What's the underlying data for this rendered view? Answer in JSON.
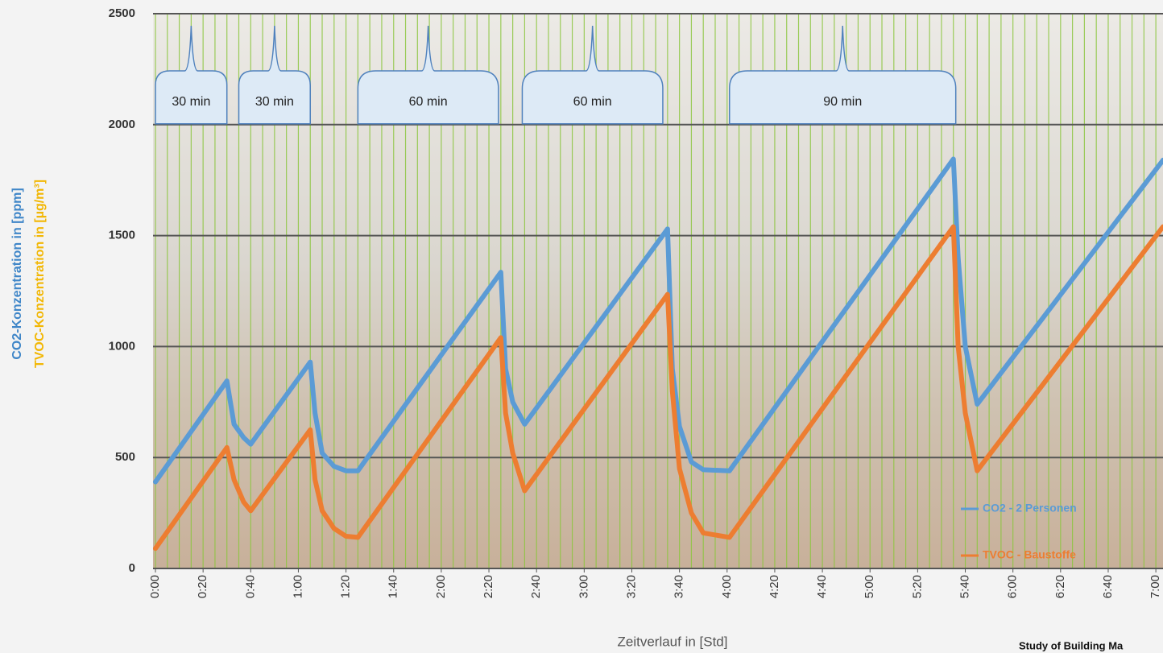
{
  "chart_data": {
    "type": "line",
    "x_label": "Zeitverlauf in [Std]",
    "y_labels": [
      {
        "text": "CO2-Konzentration in [ppm]",
        "color": "#3f86c8"
      },
      {
        "text": "TVOC-Konzentration in [µg/m³]",
        "color": "#f2b705"
      }
    ],
    "source": "Study of Building Ma",
    "x": [
      0,
      30,
      33,
      37,
      40,
      65,
      67,
      70,
      75,
      80,
      85,
      145,
      147,
      150,
      155,
      215,
      217,
      220,
      225,
      230,
      241,
      335,
      337,
      340,
      345,
      423
    ],
    "series": [
      {
        "name": "CO2 - 2 Personen",
        "color": "#5b9bd5",
        "values": [
          390,
          845,
          650,
          590,
          560,
          930,
          700,
          520,
          460,
          440,
          440,
          1335,
          900,
          750,
          650,
          1530,
          900,
          640,
          480,
          445,
          440,
          1845,
          1400,
          1000,
          740,
          1840
        ]
      },
      {
        "name": "TVOC - Baustoffe",
        "color": "#ed7d31",
        "values": [
          90,
          545,
          400,
          300,
          260,
          625,
          400,
          260,
          180,
          145,
          140,
          1040,
          700,
          520,
          350,
          1235,
          800,
          450,
          250,
          160,
          140,
          1540,
          1000,
          700,
          440,
          1540
        ]
      }
    ],
    "annotations": [
      {
        "text": "30 min",
        "x_start": 0,
        "x_end": 30
      },
      {
        "text": "30 min",
        "x_start": 35,
        "x_end": 65
      },
      {
        "text": "60 min",
        "x_start": 85,
        "x_end": 144
      },
      {
        "text": "60 min",
        "x_start": 154,
        "x_end": 213
      },
      {
        "text": "90 min",
        "x_start": 241,
        "x_end": 336
      }
    ],
    "xlim": [
      0,
      423
    ],
    "xticks": [
      {
        "value": 0,
        "label": "0:00"
      },
      {
        "value": 20,
        "label": "0:20"
      },
      {
        "value": 40,
        "label": "0:40"
      },
      {
        "value": 60,
        "label": "1:00"
      },
      {
        "value": 80,
        "label": "1:20"
      },
      {
        "value": 100,
        "label": "1:40"
      },
      {
        "value": 120,
        "label": "2:00"
      },
      {
        "value": 140,
        "label": "2:20"
      },
      {
        "value": 160,
        "label": "2:40"
      },
      {
        "value": 180,
        "label": "3:00"
      },
      {
        "value": 200,
        "label": "3:20"
      },
      {
        "value": 220,
        "label": "3:40"
      },
      {
        "value": 240,
        "label": "4:00"
      },
      {
        "value": 260,
        "label": "4:20"
      },
      {
        "value": 280,
        "label": "4:40"
      },
      {
        "value": 300,
        "label": "5:00"
      },
      {
        "value": 320,
        "label": "5:20"
      },
      {
        "value": 340,
        "label": "5:40"
      },
      {
        "value": 360,
        "label": "6:00"
      },
      {
        "value": 380,
        "label": "6:20"
      },
      {
        "value": 400,
        "label": "6:40"
      },
      {
        "value": 420,
        "label": "7:00"
      }
    ],
    "x_minor_grid": 5,
    "ylim": [
      0,
      2500
    ],
    "yticks": [
      0,
      500,
      1000,
      1500,
      2000,
      2500
    ],
    "grid": true,
    "legend": "bottom-right"
  }
}
